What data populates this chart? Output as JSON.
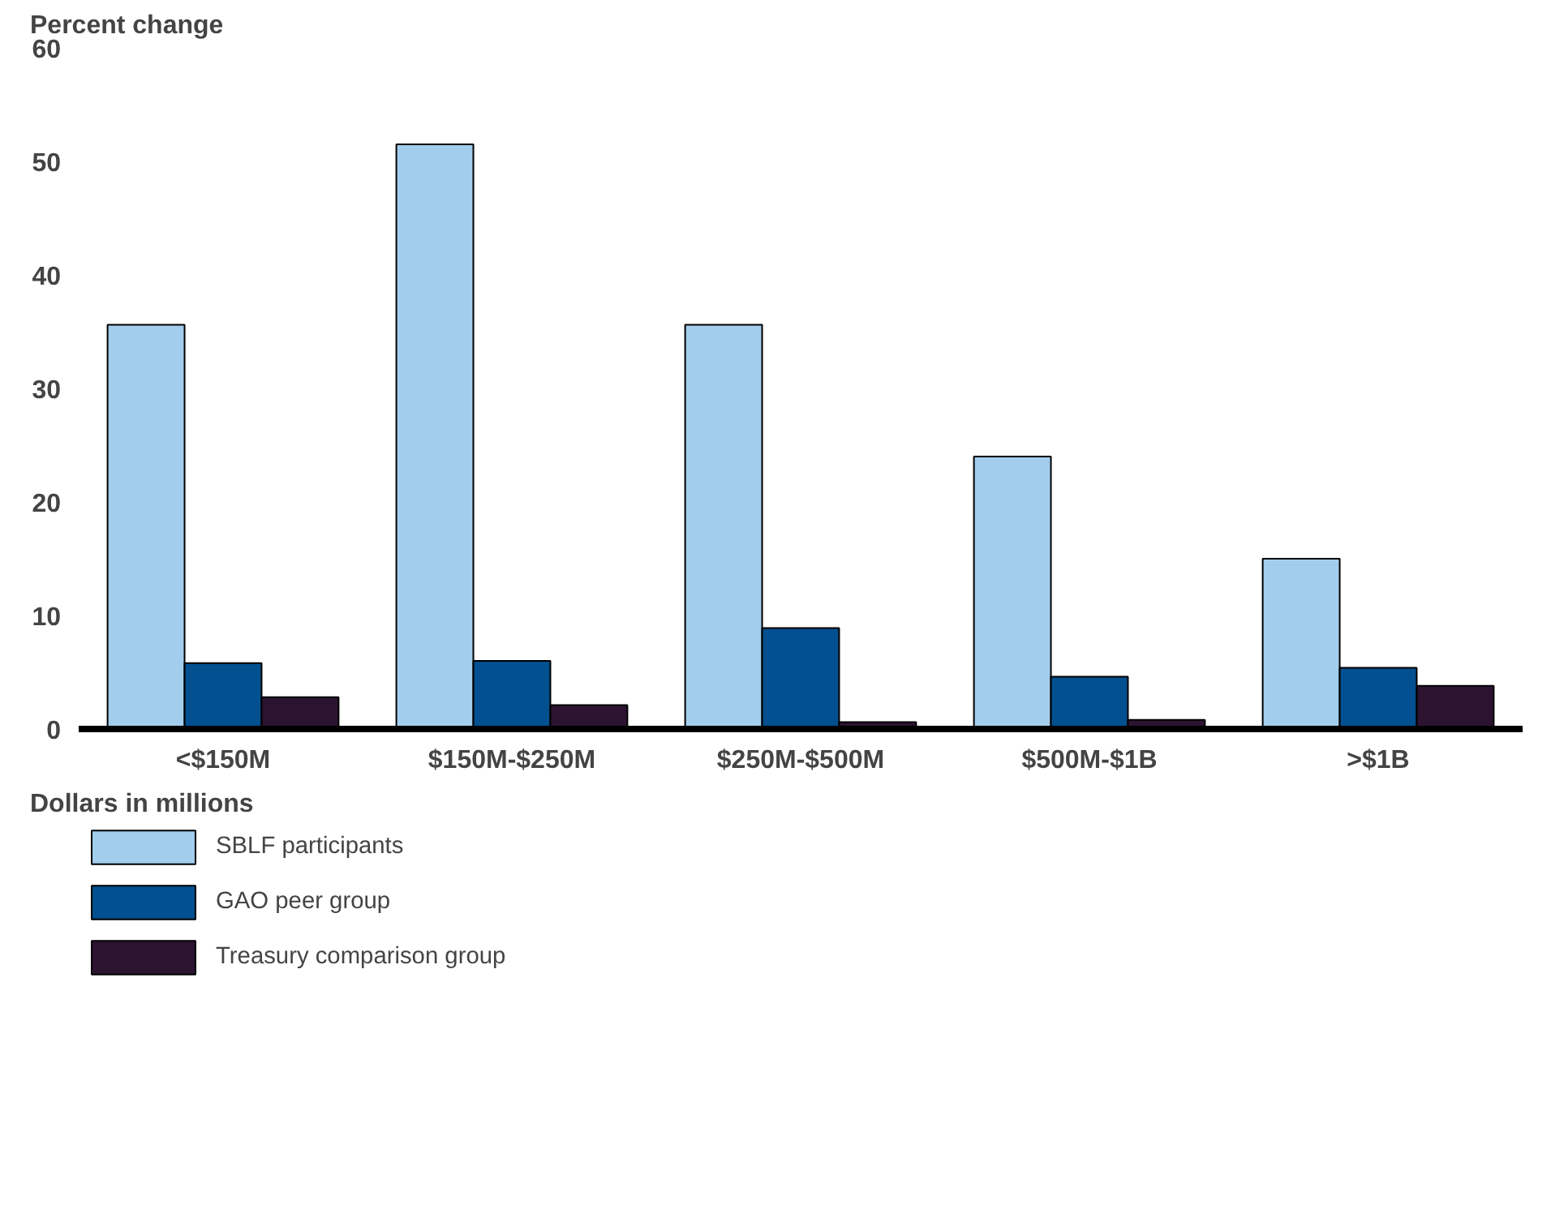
{
  "chart_data": {
    "type": "bar",
    "ylabel": "Percent change",
    "xlabel": "Dollars in millions",
    "categories": [
      "<$150M",
      "$150M-$250M",
      "$250M-$500M",
      "$500M-$1B",
      ">$1B"
    ],
    "series": [
      {
        "name": "SBLF participants",
        "color": "#a3cdec",
        "values": [
          35.6,
          51.5,
          35.6,
          24.0,
          15.0
        ]
      },
      {
        "name": "GAO peer group",
        "color": "#02508f",
        "values": [
          5.8,
          6.0,
          8.9,
          4.6,
          5.4
        ]
      },
      {
        "name": "Treasury comparison group",
        "color": "#2c1431",
        "values": [
          2.8,
          2.1,
          0.6,
          0.8,
          3.8
        ]
      }
    ],
    "ylim": [
      0,
      60
    ],
    "yticks": [
      0,
      10,
      20,
      30,
      40,
      50,
      60
    ],
    "grid": false,
    "legend": "bottom left"
  }
}
